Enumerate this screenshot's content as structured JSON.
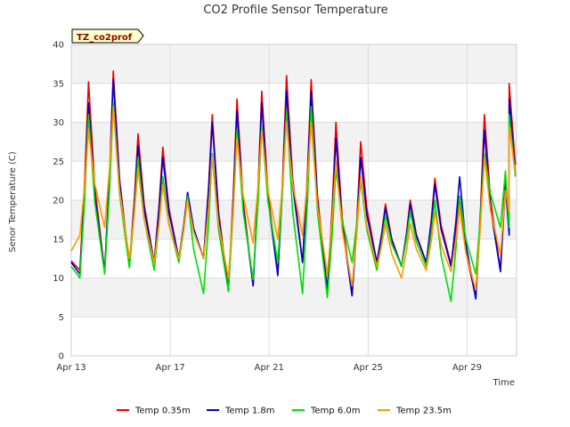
{
  "chart_data": {
    "type": "line",
    "title": "CO2 Profile Sensor Temperature",
    "xlabel": "Time",
    "ylabel": "Senor Temperature (C)",
    "ylim": [
      0,
      40
    ],
    "yticks": [
      "0",
      "5",
      "10",
      "15",
      "20",
      "25",
      "30",
      "35",
      "40"
    ],
    "xticks": [
      {
        "label": "Apr 13",
        "day": 13
      },
      {
        "label": "Apr 17",
        "day": 17
      },
      {
        "label": "Apr 21",
        "day": 21
      },
      {
        "label": "Apr 25",
        "day": 25
      },
      {
        "label": "Apr 29",
        "day": 29
      }
    ],
    "xlim": [
      13,
      31
    ],
    "grid": true,
    "legend_position": "bottom",
    "tag_label": "TZ_co2prof",
    "daily_extremes": {
      "day_start": [
        13.0,
        13.1,
        14.1,
        15.1,
        16.1,
        17.1,
        18.1,
        19.1,
        20.1,
        21.1,
        22.1,
        23.1,
        24.1,
        25.1,
        26.1,
        27.1,
        28.1,
        29.1,
        30.1,
        30.7
      ],
      "series": [
        {
          "name": "Temp 0.35m",
          "color": "#ee0000",
          "min": [
            12.2,
            11.0,
            10.8,
            11.5,
            12.0,
            12.5,
            12.5,
            8.5,
            9.0,
            10.5,
            12.0,
            8.5,
            7.8,
            12.0,
            11.5,
            12.0,
            11.8,
            7.5,
            11.0,
            16.0
          ],
          "max": [
            12.2,
            35.2,
            36.6,
            28.5,
            26.8,
            21.0,
            31.0,
            33.0,
            34.0,
            36.0,
            35.5,
            30.0,
            27.5,
            19.5,
            20.0,
            22.8,
            20.5,
            31.0,
            35.0,
            16.0
          ]
        },
        {
          "name": "Temp 1.8m",
          "color": "#0000cc",
          "min": [
            12.0,
            10.5,
            10.8,
            11.5,
            12.0,
            12.5,
            12.5,
            8.3,
            9.0,
            10.3,
            12.0,
            8.3,
            7.7,
            12.0,
            11.5,
            12.0,
            11.5,
            7.3,
            10.8,
            15.5
          ],
          "max": [
            12.0,
            32.5,
            35.5,
            27.0,
            25.5,
            21.0,
            30.0,
            31.5,
            32.5,
            34.0,
            34.0,
            28.0,
            25.5,
            19.0,
            19.5,
            22.0,
            23.0,
            29.0,
            33.0,
            15.5
          ]
        },
        {
          "name": "Temp 6.0m",
          "color": "#00dd00",
          "min": [
            11.5,
            10.0,
            10.5,
            11.3,
            11.0,
            12.0,
            8.0,
            8.3,
            9.8,
            12.0,
            8.0,
            7.5,
            12.0,
            11.0,
            11.5,
            11.5,
            7.0,
            10.5,
            16.5,
            16.5
          ],
          "max": [
            11.5,
            31.0,
            32.5,
            25.5,
            23.0,
            20.5,
            26.0,
            29.0,
            29.5,
            31.5,
            32.0,
            24.0,
            22.5,
            18.0,
            18.5,
            20.0,
            20.5,
            26.0,
            31.0,
            16.5
          ]
        },
        {
          "name": "Temp 23.5m",
          "color": "#ff9900",
          "min": [
            13.5,
            15.5,
            16.5,
            12.5,
            12.0,
            12.5,
            12.5,
            10.0,
            14.5,
            15.0,
            15.5,
            10.5,
            9.0,
            11.5,
            10.0,
            11.0,
            10.8,
            8.5,
            13.0,
            18.5
          ],
          "max": [
            13.5,
            29.0,
            32.0,
            24.0,
            22.0,
            20.0,
            25.5,
            28.0,
            29.0,
            30.0,
            30.0,
            25.0,
            23.0,
            17.0,
            17.0,
            18.5,
            19.0,
            25.5,
            29.5,
            18.5
          ]
        }
      ]
    }
  }
}
